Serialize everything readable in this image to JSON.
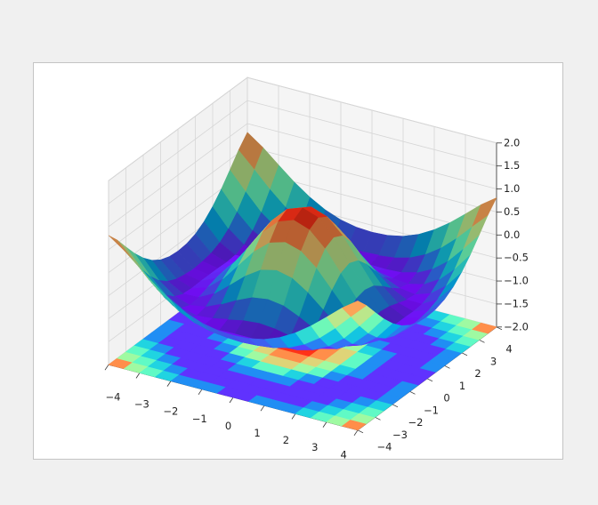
{
  "chart_data": {
    "type": "surface",
    "colormap": "rainbow",
    "contour_offset": -2,
    "x": [
      -4,
      -3.5,
      -3,
      -2.5,
      -2,
      -1.5,
      -1,
      -0.5,
      0,
      0.5,
      1,
      1.5,
      2,
      2.5,
      3,
      3.5,
      4
    ],
    "y": [
      -4,
      -3.5,
      -3,
      -2.5,
      -2,
      -1.5,
      -1,
      -0.5,
      0,
      0.5,
      1,
      1.5,
      2,
      2.5,
      3,
      3.5,
      4
    ],
    "z": [
      [
        0.81,
        0.57,
        0.28,
        0,
        -0.24,
        -0.43,
        -0.56,
        -0.63,
        -0.65,
        -0.63,
        -0.56,
        -0.43,
        -0.24,
        0,
        0.28,
        0.57,
        0.81
      ],
      [
        0.57,
        0.24,
        -0.1,
        -0.4,
        -0.63,
        -0.79,
        -0.88,
        -0.92,
        -0.94,
        -0.92,
        -0.88,
        -0.79,
        -0.63,
        -0.4,
        -0.1,
        0.24,
        0.57
      ],
      [
        0.28,
        -0.1,
        -0.46,
        -0.72,
        -0.89,
        -0.98,
        -1,
        -0.99,
        -0.99,
        -0.99,
        -1,
        -0.98,
        -0.89,
        -0.72,
        -0.46,
        -0.1,
        0.28
      ],
      [
        0,
        -0.4,
        -0.72,
        -0.92,
        -1,
        -0.97,
        -0.9,
        -0.83,
        -0.8,
        -0.83,
        -0.9,
        -0.97,
        -1,
        -0.92,
        -0.72,
        -0.4,
        0
      ],
      [
        -0.24,
        -0.63,
        -0.89,
        -1,
        -0.95,
        -0.8,
        -0.62,
        -0.47,
        -0.42,
        -0.47,
        -0.62,
        -0.8,
        -0.95,
        -1,
        -0.89,
        -0.63,
        -0.24
      ],
      [
        -0.43,
        -0.79,
        -0.98,
        -0.97,
        -0.8,
        -0.52,
        -0.23,
        -0.01,
        0.07,
        -0.01,
        -0.23,
        -0.52,
        -0.8,
        -0.97,
        -0.98,
        -0.79,
        -0.43
      ],
      [
        -0.56,
        -0.88,
        -1,
        -0.9,
        -0.62,
        -0.23,
        0.16,
        0.44,
        0.54,
        0.44,
        0.16,
        -0.23,
        -0.62,
        -0.9,
        -1,
        -0.88,
        -0.56
      ],
      [
        -0.63,
        -0.92,
        -0.99,
        -0.83,
        -0.47,
        -0.01,
        0.44,
        0.76,
        0.88,
        0.76,
        0.44,
        -0.01,
        -0.47,
        -0.83,
        -0.99,
        -0.92,
        -0.63
      ],
      [
        -0.65,
        -0.94,
        -0.99,
        -0.8,
        -0.42,
        0.07,
        0.54,
        0.88,
        1,
        0.88,
        0.54,
        0.07,
        -0.42,
        -0.8,
        -0.99,
        -0.94,
        -0.65
      ],
      [
        -0.63,
        -0.92,
        -0.99,
        -0.83,
        -0.47,
        -0.01,
        0.44,
        0.76,
        0.88,
        0.76,
        0.44,
        -0.01,
        -0.47,
        -0.83,
        -0.99,
        -0.92,
        -0.63
      ],
      [
        -0.56,
        -0.88,
        -1,
        -0.9,
        -0.62,
        -0.23,
        0.16,
        0.44,
        0.54,
        0.44,
        0.16,
        -0.23,
        -0.62,
        -0.9,
        -1,
        -0.88,
        -0.56
      ],
      [
        -0.43,
        -0.79,
        -0.98,
        -0.97,
        -0.8,
        -0.52,
        -0.23,
        -0.01,
        0.07,
        -0.01,
        -0.23,
        -0.52,
        -0.8,
        -0.97,
        -0.98,
        -0.79,
        -0.43
      ],
      [
        -0.24,
        -0.63,
        -0.89,
        -1,
        -0.95,
        -0.8,
        -0.62,
        -0.47,
        -0.42,
        -0.47,
        -0.62,
        -0.8,
        -0.95,
        -1,
        -0.89,
        -0.63,
        -0.24
      ],
      [
        0,
        -0.4,
        -0.72,
        -0.92,
        -1,
        -0.97,
        -0.9,
        -0.83,
        -0.8,
        -0.83,
        -0.9,
        -0.97,
        -1,
        -0.92,
        -0.72,
        -0.4,
        0
      ],
      [
        0.28,
        -0.1,
        -0.46,
        -0.72,
        -0.89,
        -0.98,
        -1,
        -0.99,
        -0.99,
        -0.99,
        -1,
        -0.98,
        -0.89,
        -0.72,
        -0.46,
        -0.1,
        0.28
      ],
      [
        0.57,
        0.24,
        -0.1,
        -0.4,
        -0.63,
        -0.79,
        -0.88,
        -0.92,
        -0.94,
        -0.92,
        -0.88,
        -0.79,
        -0.63,
        -0.4,
        -0.1,
        0.24,
        0.57
      ],
      [
        0.81,
        0.57,
        0.28,
        0,
        -0.24,
        -0.43,
        -0.56,
        -0.63,
        -0.65,
        -0.63,
        -0.56,
        -0.43,
        -0.24,
        0,
        0.28,
        0.57,
        0.81
      ]
    ],
    "xlim": [
      -4,
      4
    ],
    "ylim": [
      -4,
      4
    ],
    "zlim": [
      -2,
      2
    ],
    "xticks": [
      {
        "value": -4,
        "label": "−4"
      },
      {
        "value": -3,
        "label": "−3"
      },
      {
        "value": -2,
        "label": "−2"
      },
      {
        "value": -1,
        "label": "−1"
      },
      0,
      1,
      2,
      3,
      4
    ],
    "yticks": [
      {
        "value": -4,
        "label": "−4"
      },
      {
        "value": -3,
        "label": "−3"
      },
      {
        "value": -2,
        "label": "−2"
      },
      {
        "value": -1,
        "label": "−1"
      },
      0,
      1,
      2,
      3,
      4
    ],
    "zticks": [
      {
        "value": -2,
        "label": "−2.0"
      },
      {
        "value": -1.5,
        "label": "−1.5"
      },
      {
        "value": -1,
        "label": "−1.0"
      },
      {
        "value": -0.5,
        "label": "−0.5"
      },
      {
        "value": 0,
        "label": "0.0"
      },
      {
        "value": 0.5,
        "label": "0.5"
      },
      {
        "value": 1,
        "label": "1.0"
      },
      {
        "value": 1.5,
        "label": "1.5"
      },
      {
        "value": 2,
        "label": "2.0"
      }
    ],
    "grid": true
  }
}
